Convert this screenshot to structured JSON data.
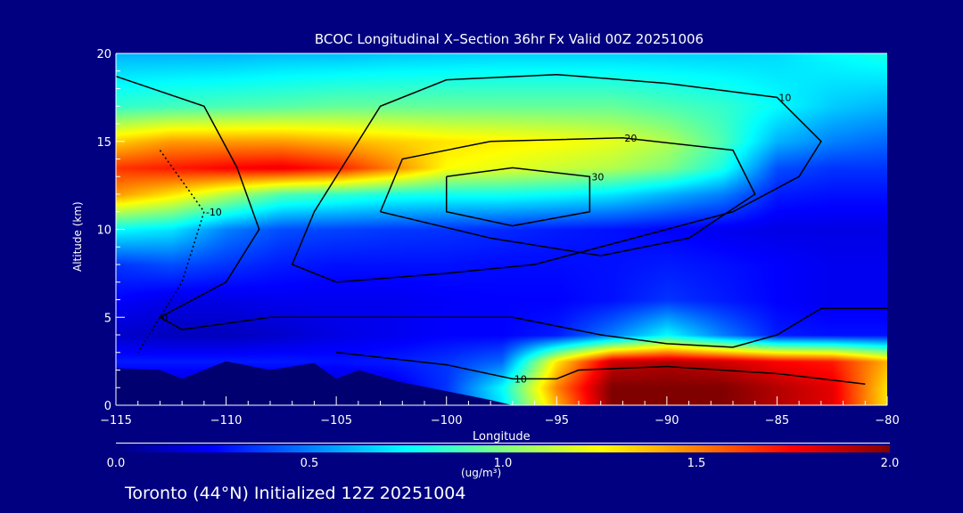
{
  "chart_data": {
    "type": "heatmap",
    "title": "BCOC Longitudinal X–Section 36hr  Fx Valid 00Z 20251006",
    "xlabel": "Longitude",
    "ylabel": "Altitude (km)",
    "xlim": [
      -115,
      -80
    ],
    "ylim": [
      0,
      20
    ],
    "xticks": [
      "-115",
      "-110",
      "-105",
      "-100",
      "-95",
      "-90",
      "-85",
      "-80"
    ],
    "xtick_values": [
      -115,
      -110,
      -105,
      -100,
      -95,
      -90,
      -85,
      -80
    ],
    "yticks": [
      "0",
      "5",
      "10",
      "15",
      "20"
    ],
    "ytick_values": [
      0,
      5,
      10,
      15,
      20
    ],
    "colorbar": {
      "label": "(ug/m³)",
      "ticks": [
        "0.0",
        "0.5",
        "1.0",
        "1.5",
        "2.0"
      ],
      "range": [
        0,
        2
      ]
    },
    "grid_lon": [
      -115,
      -112.5,
      -110,
      -107.5,
      -105,
      -102.5,
      -100,
      -97.5,
      -95,
      -92.5,
      -90,
      -87.5,
      -85,
      -82.5,
      -80
    ],
    "grid_alt": [
      20,
      17,
      15,
      13.5,
      12,
      10,
      8,
      6,
      4,
      2.5,
      1,
      0
    ],
    "values": [
      [
        0.6,
        0.6,
        0.6,
        0.62,
        0.62,
        0.64,
        0.65,
        0.66,
        0.66,
        0.66,
        0.66,
        0.66,
        0.68,
        0.75,
        0.8
      ],
      [
        0.85,
        0.88,
        0.9,
        0.92,
        0.95,
        0.95,
        0.95,
        0.95,
        0.95,
        0.95,
        0.9,
        0.85,
        0.75,
        0.65,
        0.6
      ],
      [
        1.35,
        1.45,
        1.45,
        1.45,
        1.4,
        1.35,
        1.3,
        1.28,
        1.25,
        1.2,
        1.1,
        0.9,
        0.6,
        0.5,
        0.45
      ],
      [
        1.65,
        1.7,
        1.75,
        1.78,
        1.7,
        1.5,
        1.25,
        1.2,
        1.15,
        1.1,
        1.0,
        0.8,
        0.4,
        0.35,
        0.35
      ],
      [
        1.45,
        1.3,
        1.1,
        0.9,
        0.85,
        0.8,
        0.78,
        0.78,
        0.75,
        0.7,
        0.6,
        0.5,
        0.3,
        0.28,
        0.28
      ],
      [
        0.75,
        0.7,
        0.5,
        0.4,
        0.38,
        0.36,
        0.35,
        0.33,
        0.3,
        0.28,
        0.25,
        0.22,
        0.2,
        0.2,
        0.2
      ],
      [
        0.35,
        0.4,
        0.35,
        0.3,
        0.28,
        0.28,
        0.28,
        0.27,
        0.27,
        0.28,
        0.3,
        0.28,
        0.25,
        0.22,
        0.22
      ],
      [
        0.25,
        0.2,
        0.2,
        0.22,
        0.22,
        0.22,
        0.24,
        0.25,
        0.25,
        0.28,
        0.35,
        0.3,
        0.25,
        0.22,
        0.22
      ],
      [
        0.15,
        0.12,
        0.12,
        0.15,
        0.2,
        0.22,
        0.25,
        0.25,
        0.3,
        0.5,
        0.75,
        0.5,
        0.3,
        0.28,
        0.28
      ],
      [
        0.3,
        0.3,
        0.3,
        0.3,
        0.28,
        0.3,
        0.35,
        0.45,
        1.3,
        1.85,
        1.9,
        1.85,
        1.75,
        1.7,
        1.4
      ],
      [
        0.15,
        0.15,
        0.15,
        0.15,
        0.15,
        0.2,
        0.35,
        0.75,
        1.5,
        2.0,
        2.0,
        2.0,
        1.9,
        1.8,
        1.3
      ],
      [
        0.15,
        0.15,
        0.15,
        0.15,
        0.15,
        0.2,
        0.35,
        0.7,
        1.4,
        2.0,
        2.0,
        2.0,
        1.9,
        1.8,
        1.3
      ]
    ],
    "terrain": [
      [
        -115,
        0
      ],
      [
        -115,
        2.1
      ],
      [
        -113,
        2.0
      ],
      [
        -112,
        1.5
      ],
      [
        -110,
        2.5
      ],
      [
        -108,
        2.0
      ],
      [
        -106,
        2.4
      ],
      [
        -105,
        1.5
      ],
      [
        -104,
        2.0
      ],
      [
        -102,
        1.3
      ],
      [
        -100,
        0.8
      ],
      [
        -98,
        0.3
      ],
      [
        -97,
        0
      ]
    ],
    "contours": [
      {
        "label": "0",
        "dashed": false,
        "points": [
          [
            -115,
            18.7
          ],
          [
            -111,
            17
          ],
          [
            -109.5,
            13.5
          ],
          [
            -108.5,
            10
          ],
          [
            -110,
            7
          ],
          [
            -113,
            5
          ],
          [
            -112,
            4.3
          ],
          [
            -108,
            5
          ],
          [
            -103,
            5
          ],
          [
            -97,
            5
          ],
          [
            -93,
            4
          ],
          [
            -90,
            3.5
          ],
          [
            -87,
            3.3
          ],
          [
            -85,
            4
          ],
          [
            -83,
            5.5
          ],
          [
            -80,
            5.5
          ]
        ]
      },
      {
        "label": "10",
        "dashed": false,
        "points": [
          [
            -105,
            13
          ],
          [
            -103,
            17
          ],
          [
            -100,
            18.5
          ],
          [
            -95,
            18.8
          ],
          [
            -90,
            18.3
          ],
          [
            -85,
            17.5
          ],
          [
            -83,
            15
          ],
          [
            -84,
            13
          ],
          [
            -87,
            11
          ],
          [
            -90,
            10
          ],
          [
            -93,
            9
          ],
          [
            -96,
            8
          ],
          [
            -100,
            7.5
          ],
          [
            -105,
            7
          ],
          [
            -107,
            8
          ],
          [
            -106,
            11
          ],
          [
            -105,
            13
          ]
        ]
      },
      {
        "label": "20",
        "dashed": false,
        "points": [
          [
            -103,
            11
          ],
          [
            -102,
            14
          ],
          [
            -98,
            15
          ],
          [
            -92,
            15.2
          ],
          [
            -87,
            14.5
          ],
          [
            -86,
            12
          ],
          [
            -89,
            9.5
          ],
          [
            -93,
            8.5
          ],
          [
            -98,
            9.5
          ],
          [
            -103,
            11
          ]
        ]
      },
      {
        "label": "30",
        "dashed": false,
        "points": [
          [
            -100,
            13
          ],
          [
            -97,
            13.5
          ],
          [
            -93.5,
            13
          ],
          [
            -93.5,
            11
          ],
          [
            -97,
            10.2
          ],
          [
            -100,
            11
          ],
          [
            -100,
            13
          ]
        ]
      },
      {
        "label": "10",
        "dashed": false,
        "points": [
          [
            -105,
            3
          ],
          [
            -100,
            2.3
          ],
          [
            -97,
            1.5
          ],
          [
            -95,
            1.5
          ],
          [
            -94,
            2
          ],
          [
            -90,
            2.2
          ],
          [
            -85,
            1.8
          ],
          [
            -81,
            1.2
          ]
        ]
      },
      {
        "label": "-10",
        "dashed": true,
        "points": [
          [
            -113,
            14.5
          ],
          [
            -111,
            11
          ],
          [
            -112,
            7
          ],
          [
            -114,
            3
          ]
        ]
      }
    ]
  },
  "footer": "Toronto (44°N) Initialized 12Z 20251004"
}
